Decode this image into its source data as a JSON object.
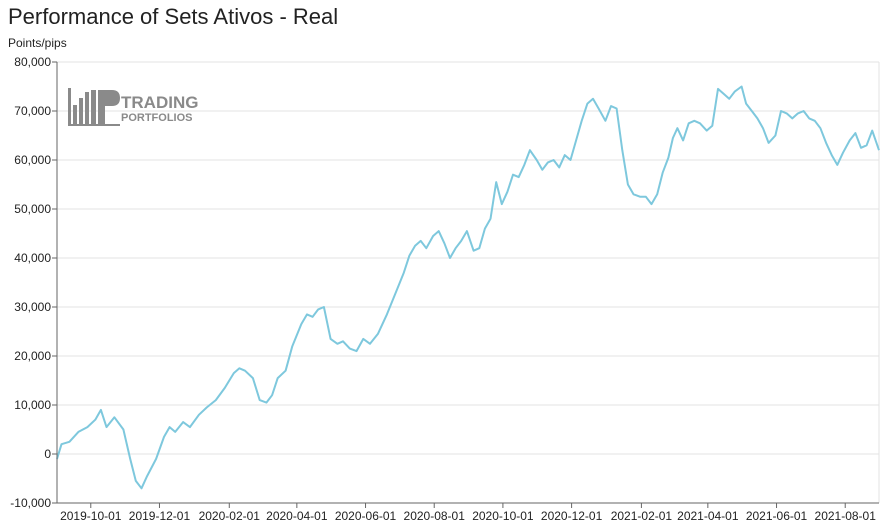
{
  "chart_data": {
    "type": "line",
    "title": "Performance of Sets Ativos - Real",
    "ylabel": "Points/pips",
    "xlabel": "",
    "ylim": [
      -10000,
      80000
    ],
    "yticks": [
      -10000,
      0,
      10000,
      20000,
      30000,
      40000,
      50000,
      60000,
      70000,
      80000
    ],
    "ytick_labels": [
      "-10,000",
      "0",
      "10,000",
      "20,000",
      "30,000",
      "40,000",
      "50,000",
      "60,000",
      "70,000",
      "80,000"
    ],
    "xlim": [
      "2019-09-01",
      "2021-08-31"
    ],
    "xticks": [
      "2019-10-01",
      "2019-12-01",
      "2020-02-01",
      "2020-04-01",
      "2020-06-01",
      "2020-08-01",
      "2020-10-01",
      "2020-12-01",
      "2021-02-01",
      "2021-04-01",
      "2021-06-01",
      "2021-08-01"
    ],
    "grid": true,
    "series": [
      {
        "color": "#7ec8dd",
        "points": [
          [
            "2019-09-01",
            -1000
          ],
          [
            "2019-09-05",
            2000
          ],
          [
            "2019-09-12",
            2500
          ],
          [
            "2019-09-20",
            4500
          ],
          [
            "2019-09-28",
            5500
          ],
          [
            "2019-10-05",
            7000
          ],
          [
            "2019-10-10",
            9000
          ],
          [
            "2019-10-15",
            5500
          ],
          [
            "2019-10-22",
            7500
          ],
          [
            "2019-10-30",
            5000
          ],
          [
            "2019-11-05",
            -1000
          ],
          [
            "2019-11-10",
            -5500
          ],
          [
            "2019-11-15",
            -7000
          ],
          [
            "2019-11-20",
            -4500
          ],
          [
            "2019-11-28",
            -1000
          ],
          [
            "2019-12-05",
            3500
          ],
          [
            "2019-12-10",
            5500
          ],
          [
            "2019-12-15",
            4500
          ],
          [
            "2019-12-22",
            6500
          ],
          [
            "2019-12-28",
            5500
          ],
          [
            "2020-01-05",
            8000
          ],
          [
            "2020-01-12",
            9500
          ],
          [
            "2020-01-20",
            11000
          ],
          [
            "2020-01-28",
            13500
          ],
          [
            "2020-02-05",
            16500
          ],
          [
            "2020-02-10",
            17500
          ],
          [
            "2020-02-15",
            17000
          ],
          [
            "2020-02-22",
            15500
          ],
          [
            "2020-02-28",
            11000
          ],
          [
            "2020-03-05",
            10500
          ],
          [
            "2020-03-10",
            12000
          ],
          [
            "2020-03-15",
            15500
          ],
          [
            "2020-03-22",
            17000
          ],
          [
            "2020-03-28",
            22000
          ],
          [
            "2020-04-05",
            26500
          ],
          [
            "2020-04-10",
            28500
          ],
          [
            "2020-04-15",
            28000
          ],
          [
            "2020-04-20",
            29500
          ],
          [
            "2020-04-25",
            30000
          ],
          [
            "2020-05-01",
            23500
          ],
          [
            "2020-05-07",
            22500
          ],
          [
            "2020-05-12",
            23000
          ],
          [
            "2020-05-18",
            21500
          ],
          [
            "2020-05-24",
            21000
          ],
          [
            "2020-05-30",
            23500
          ],
          [
            "2020-06-05",
            22500
          ],
          [
            "2020-06-12",
            24500
          ],
          [
            "2020-06-20",
            28500
          ],
          [
            "2020-06-28",
            33000
          ],
          [
            "2020-07-05",
            37000
          ],
          [
            "2020-07-10",
            40500
          ],
          [
            "2020-07-15",
            42500
          ],
          [
            "2020-07-20",
            43500
          ],
          [
            "2020-07-25",
            42000
          ],
          [
            "2020-07-31",
            44500
          ],
          [
            "2020-08-05",
            45500
          ],
          [
            "2020-08-10",
            43000
          ],
          [
            "2020-08-15",
            40000
          ],
          [
            "2020-08-20",
            42000
          ],
          [
            "2020-08-25",
            43500
          ],
          [
            "2020-08-30",
            45500
          ],
          [
            "2020-09-05",
            41500
          ],
          [
            "2020-09-10",
            42000
          ],
          [
            "2020-09-15",
            46000
          ],
          [
            "2020-09-20",
            48000
          ],
          [
            "2020-09-25",
            55500
          ],
          [
            "2020-09-30",
            51000
          ],
          [
            "2020-10-05",
            53500
          ],
          [
            "2020-10-10",
            57000
          ],
          [
            "2020-10-15",
            56500
          ],
          [
            "2020-10-20",
            59000
          ],
          [
            "2020-10-25",
            62000
          ],
          [
            "2020-10-31",
            60000
          ],
          [
            "2020-11-05",
            58000
          ],
          [
            "2020-11-10",
            59500
          ],
          [
            "2020-11-15",
            60000
          ],
          [
            "2020-11-20",
            58500
          ],
          [
            "2020-11-25",
            61000
          ],
          [
            "2020-11-30",
            60000
          ],
          [
            "2020-12-05",
            64000
          ],
          [
            "2020-12-10",
            68000
          ],
          [
            "2020-12-15",
            71500
          ],
          [
            "2020-12-20",
            72500
          ],
          [
            "2020-12-25",
            70500
          ],
          [
            "2020-12-31",
            68000
          ],
          [
            "2021-01-05",
            71000
          ],
          [
            "2021-01-10",
            70500
          ],
          [
            "2021-01-15",
            62000
          ],
          [
            "2021-01-20",
            55000
          ],
          [
            "2021-01-25",
            53000
          ],
          [
            "2021-01-31",
            52500
          ],
          [
            "2021-02-05",
            52500
          ],
          [
            "2021-02-10",
            51000
          ],
          [
            "2021-02-15",
            53000
          ],
          [
            "2021-02-20",
            57500
          ],
          [
            "2021-02-25",
            60500
          ],
          [
            "2021-03-01",
            64500
          ],
          [
            "2021-03-05",
            66500
          ],
          [
            "2021-03-10",
            64000
          ],
          [
            "2021-03-15",
            67500
          ],
          [
            "2021-03-20",
            68000
          ],
          [
            "2021-03-25",
            67500
          ],
          [
            "2021-03-31",
            66000
          ],
          [
            "2021-04-05",
            67000
          ],
          [
            "2021-04-10",
            74500
          ],
          [
            "2021-04-15",
            73500
          ],
          [
            "2021-04-20",
            72500
          ],
          [
            "2021-04-25",
            74000
          ],
          [
            "2021-05-01",
            75000
          ],
          [
            "2021-05-05",
            71500
          ],
          [
            "2021-05-10",
            70000
          ],
          [
            "2021-05-15",
            68500
          ],
          [
            "2021-05-20",
            66500
          ],
          [
            "2021-05-25",
            63500
          ],
          [
            "2021-05-31",
            65000
          ],
          [
            "2021-06-05",
            70000
          ],
          [
            "2021-06-10",
            69500
          ],
          [
            "2021-06-15",
            68500
          ],
          [
            "2021-06-20",
            69500
          ],
          [
            "2021-06-25",
            70000
          ],
          [
            "2021-06-30",
            68500
          ],
          [
            "2021-07-05",
            68000
          ],
          [
            "2021-07-10",
            66500
          ],
          [
            "2021-07-15",
            63500
          ],
          [
            "2021-07-20",
            61000
          ],
          [
            "2021-07-25",
            59000
          ],
          [
            "2021-07-30",
            61500
          ],
          [
            "2021-08-05",
            64000
          ],
          [
            "2021-08-10",
            65500
          ],
          [
            "2021-08-15",
            62500
          ],
          [
            "2021-08-20",
            63000
          ],
          [
            "2021-08-25",
            66000
          ],
          [
            "2021-08-31",
            62000
          ]
        ]
      }
    ],
    "legend": "none",
    "watermark": {
      "line1": "TRADING",
      "line2": "PORTFOLIOS"
    }
  }
}
